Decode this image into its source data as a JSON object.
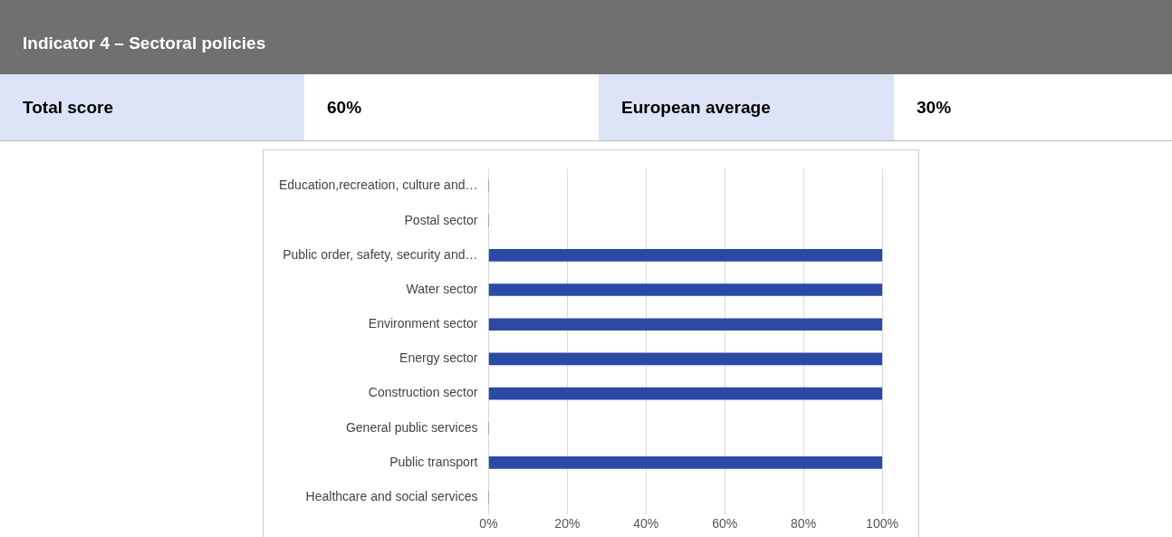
{
  "chart_data": {
    "type": "bar",
    "orientation": "horizontal",
    "title": "Indicator 4 – Sectoral policies",
    "annotations": [
      "Total score",
      "60%",
      "European average",
      "30%"
    ],
    "categories": [
      "Education,recreation, culture and…",
      "Postal sector",
      "Public order, safety, security and…",
      "Water sector",
      "Environment sector",
      "Energy sector",
      "Construction sector",
      "General public services",
      "Public transport",
      "Healthcare and social services"
    ],
    "values": [
      0,
      0,
      100,
      100,
      100,
      100,
      100,
      0,
      100,
      0
    ],
    "color": "#2a4aa5",
    "xlim": [
      0,
      100
    ],
    "xticks": [
      {
        "value": 0,
        "label": "0%"
      },
      {
        "value": 20,
        "label": "20%"
      },
      {
        "value": 40,
        "label": "40%"
      },
      {
        "value": 60,
        "label": "60%"
      },
      {
        "value": 80,
        "label": "80%"
      },
      {
        "value": 100,
        "label": "100%"
      }
    ],
    "grid": "x"
  }
}
